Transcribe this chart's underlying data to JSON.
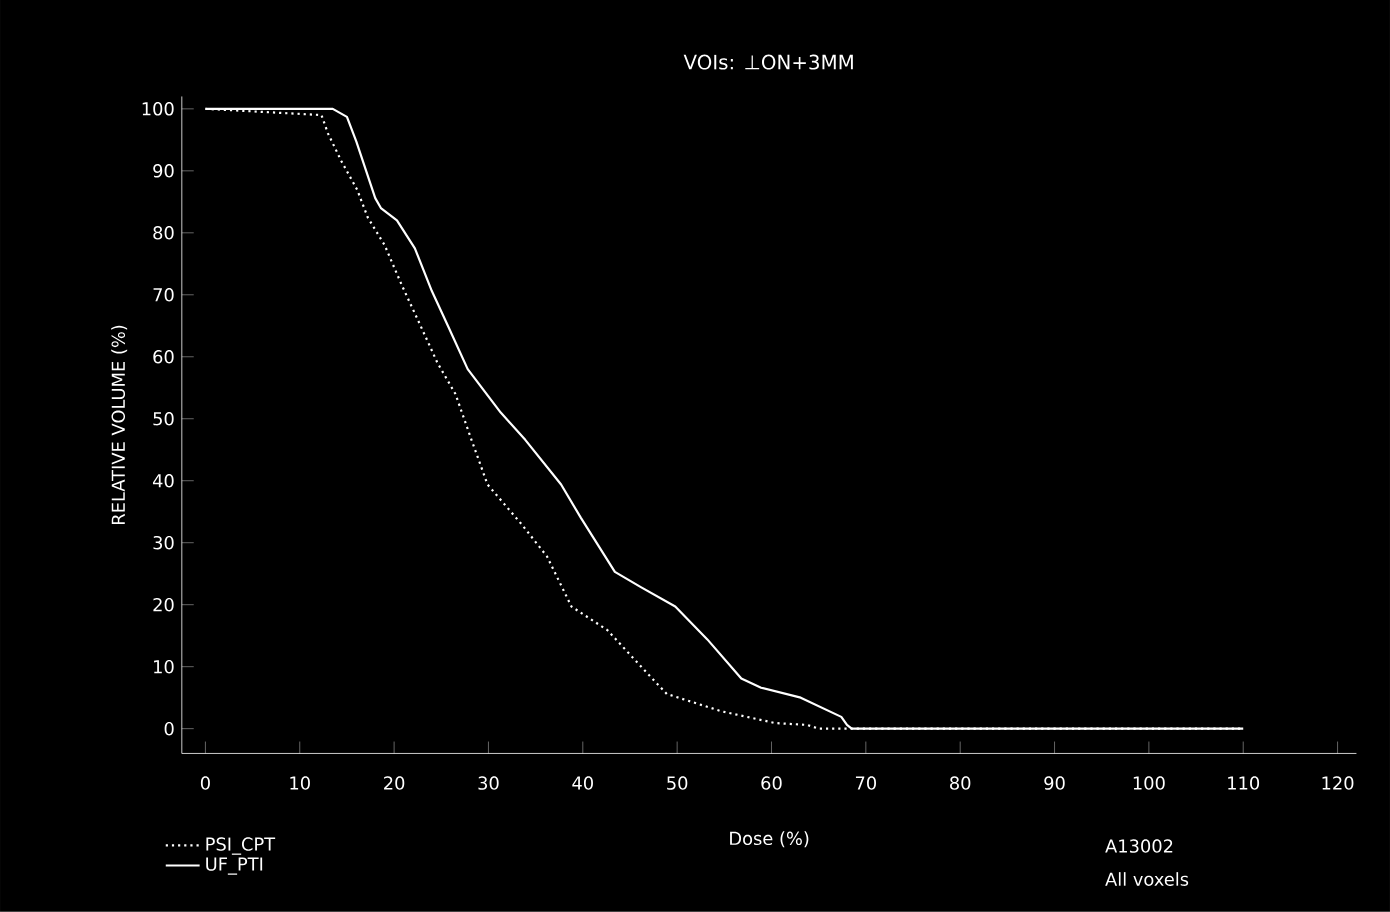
{
  "chart_data": {
    "type": "line",
    "title": "VOIs: ⊥ON+3MM",
    "xlabel": "Dose (%)",
    "ylabel": "RELATIVE VOLUME (%)",
    "annotations": [
      "A13002",
      "All voxels"
    ],
    "xlim": [
      -2.5,
      122
    ],
    "ylim": [
      -4,
      102
    ],
    "xticks": [
      0,
      10,
      20,
      30,
      40,
      50,
      60,
      70,
      80,
      90,
      100,
      110,
      120
    ],
    "yticks": [
      0,
      10,
      20,
      30,
      40,
      50,
      60,
      70,
      80,
      90,
      100
    ],
    "legend": "bottom left",
    "grid": false,
    "marker": "none",
    "series": [
      {
        "name": "PSI_CPT",
        "color": "#ffffff",
        "line_style": "dotted",
        "x": [
          0,
          12.3,
          13,
          14.4,
          16.1,
          17.2,
          19,
          20.8,
          22.5,
          24.6,
          26.5,
          28.2,
          29.9,
          33.5,
          36.2,
          38.8,
          42.6,
          46.8,
          48.9,
          54.7,
          60.4,
          63.8,
          65,
          110
        ],
        "values": [
          100,
          99,
          96,
          91.6,
          86.9,
          82.5,
          78,
          71.6,
          66,
          59,
          54,
          46.6,
          39.4,
          33,
          27.8,
          19.7,
          15.9,
          9,
          5.6,
          2.8,
          0.9,
          0.6,
          0,
          0
        ]
      },
      {
        "name": "UF_PTI",
        "color": "#ffffff",
        "line_style": "solid",
        "x": [
          0,
          13.5,
          15,
          16,
          18,
          18.6,
          20.3,
          22.2,
          24,
          25.7,
          27.8,
          31.3,
          33.9,
          37.7,
          39.8,
          43.4,
          46.2,
          49.8,
          53.2,
          56.8,
          58.9,
          63.1,
          67.4,
          68,
          68.5,
          110
        ],
        "values": [
          100,
          100,
          98.7,
          94.7,
          85.6,
          84,
          82,
          77.5,
          70.6,
          65,
          58,
          51,
          46.6,
          39.4,
          34,
          25.3,
          22.8,
          19.7,
          14.4,
          8.1,
          6.6,
          5,
          1.9,
          0.6,
          0,
          0
        ]
      }
    ]
  }
}
